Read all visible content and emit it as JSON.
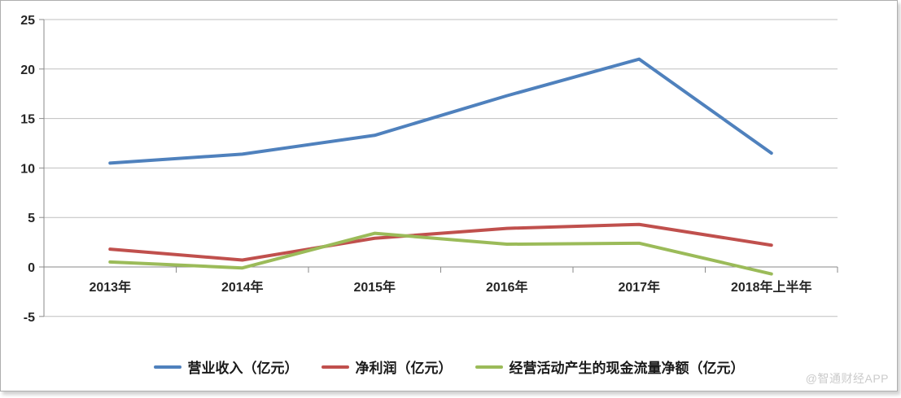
{
  "chart_data": {
    "type": "line",
    "title": "",
    "xlabel": "",
    "ylabel": "",
    "categories": [
      "2013年",
      "2014年",
      "2015年",
      "2016年",
      "2017年",
      "2018年上半年"
    ],
    "series": [
      {
        "name": "营业收入（亿元）",
        "color": "#4F81BD",
        "values": [
          10.5,
          11.4,
          13.3,
          17.3,
          21.0,
          11.5
        ]
      },
      {
        "name": "净利润（亿元）",
        "color": "#C0504D",
        "values": [
          1.8,
          0.7,
          2.9,
          3.9,
          4.3,
          2.2
        ]
      },
      {
        "name": "经营活动产生的现金流量净额（亿元）",
        "color": "#9BBB59",
        "values": [
          0.5,
          -0.1,
          3.4,
          2.3,
          2.4,
          -0.7
        ]
      }
    ],
    "ylim": [
      -5,
      25
    ],
    "y_ticks": [
      25,
      20,
      15,
      10,
      5,
      0,
      -5
    ],
    "grid": true,
    "legend_position": "bottom"
  },
  "colors": {
    "gridline": "#BFBFBF",
    "axis": "#8A8A8A",
    "tick": "#8A8A8A",
    "label": "#262626",
    "watermark": "#CBCBCB"
  },
  "watermark": {
    "text": "@智通财经APP"
  }
}
